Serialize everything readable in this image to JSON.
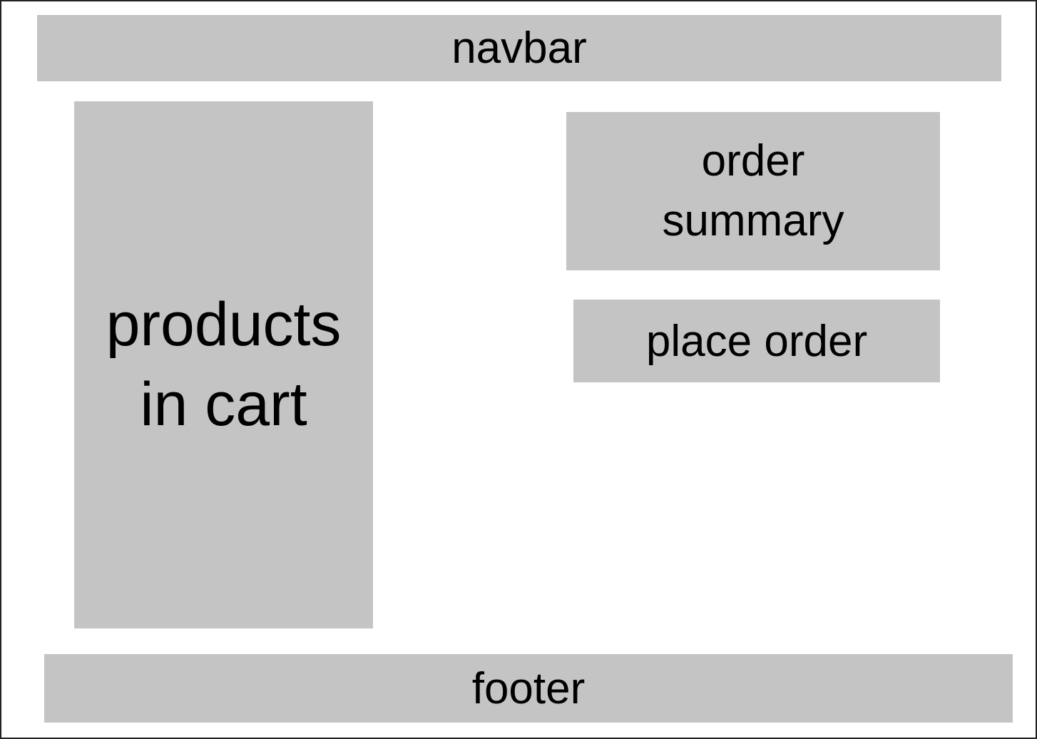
{
  "navbar": {
    "label": "navbar"
  },
  "products": {
    "line1": "products",
    "line2": "in cart"
  },
  "order_summary": {
    "line1": "order",
    "line2": "summary"
  },
  "place_order": {
    "label": "place order"
  },
  "footer": {
    "label": "footer"
  },
  "colors": {
    "box_fill": "#c4c4c4",
    "background": "#ffffff",
    "border": "#222222"
  }
}
